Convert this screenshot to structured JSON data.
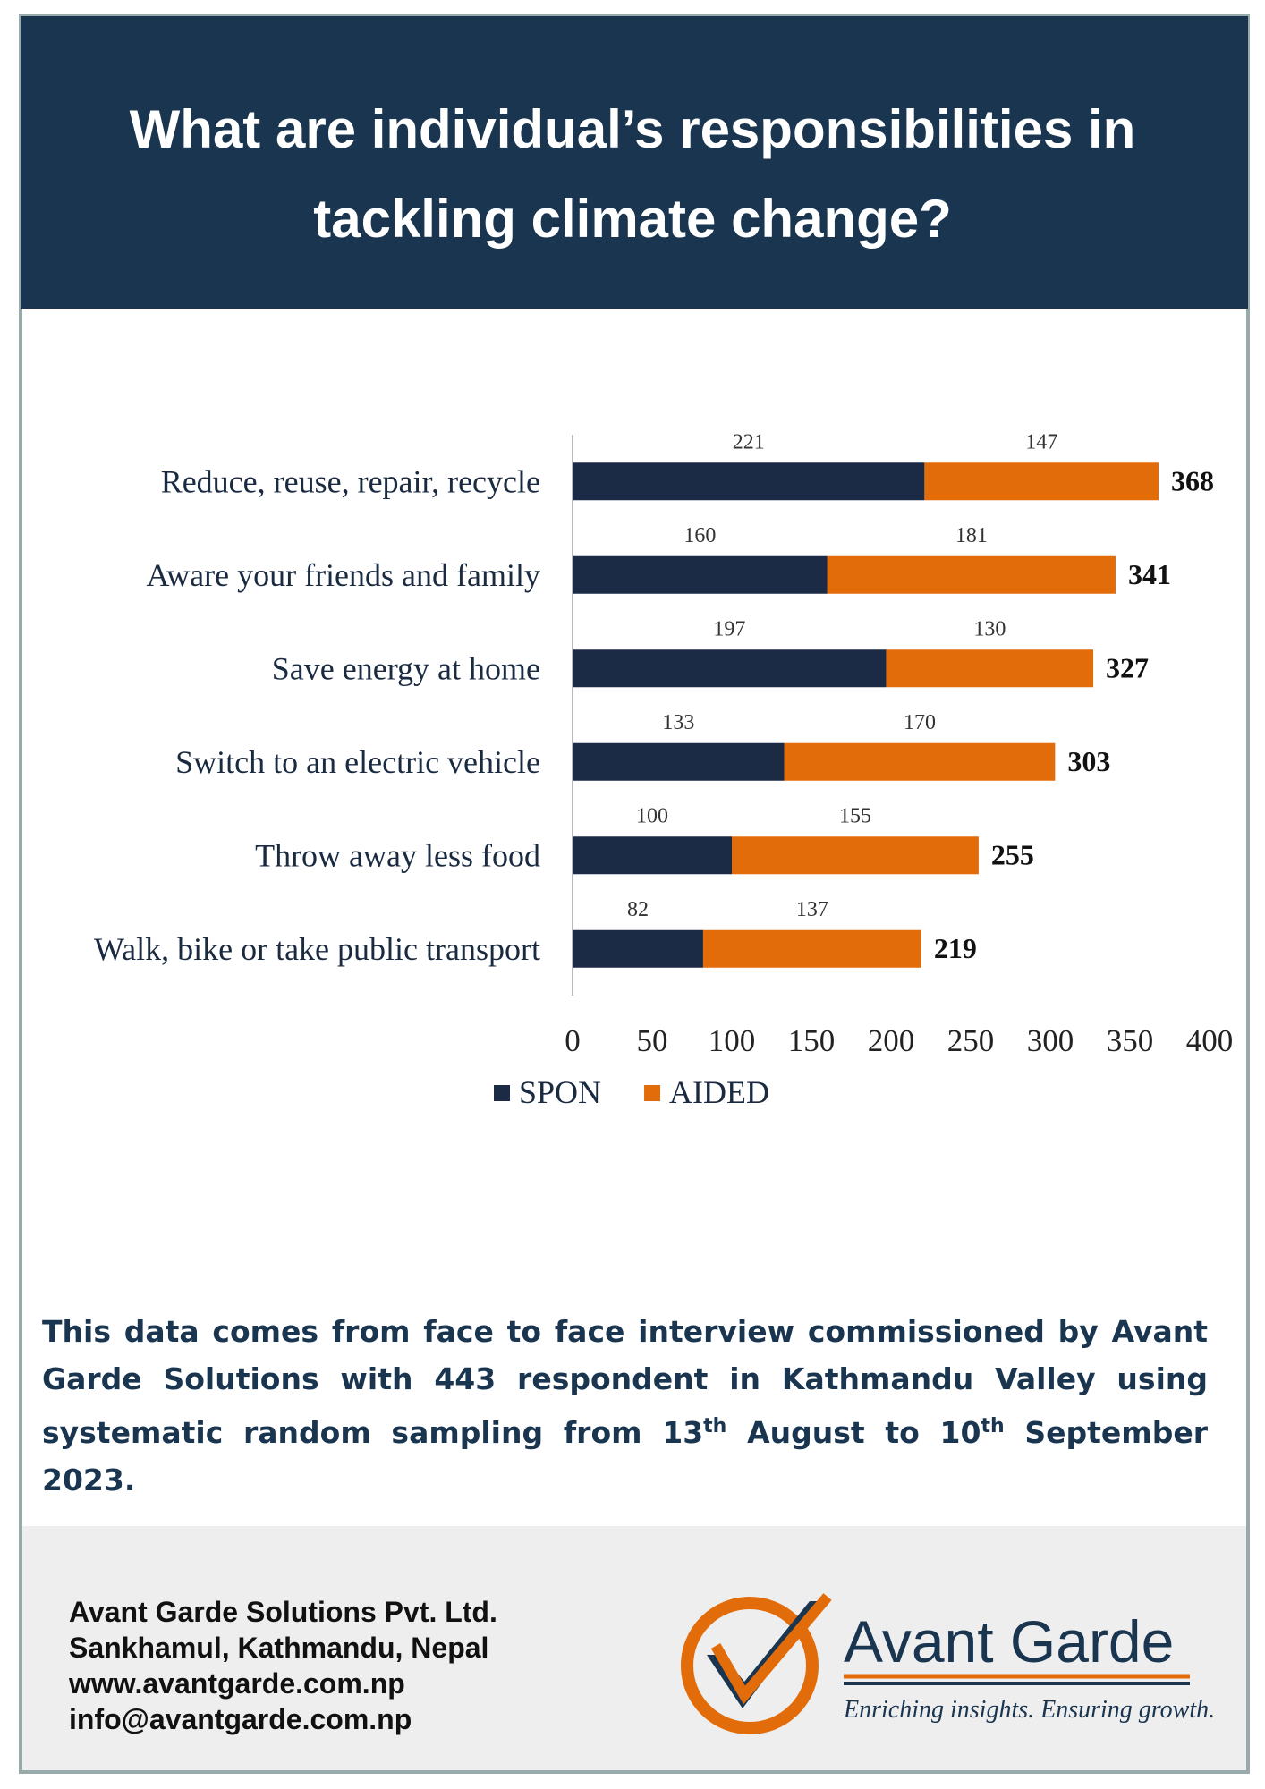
{
  "chart_data": {
    "type": "stacked-barh",
    "title": "What are individual’s responsibilities in tackling climate change?",
    "categories": [
      "Reduce, reuse, repair, recycle",
      "Aware your friends and family",
      "Save energy at home",
      "Switch to an electric vehicle",
      "Throw away less food",
      "Walk, bike or take public transport"
    ],
    "series": [
      {
        "name": "SPON",
        "color": "#1b2a45",
        "values": [
          221,
          160,
          197,
          133,
          100,
          82
        ]
      },
      {
        "name": "AIDED",
        "color": "#e36c0a",
        "values": [
          147,
          181,
          130,
          170,
          155,
          137
        ]
      }
    ],
    "totals": [
      368,
      341,
      327,
      303,
      255,
      219
    ],
    "xlim": [
      0,
      400
    ],
    "xticks": [
      0,
      50,
      100,
      150,
      200,
      250,
      300,
      350,
      400
    ],
    "legend": "bottom"
  },
  "footnote": {
    "parts": [
      "This data comes from face to face interview commissioned by Avant Garde Solutions with 443 respondent in Kathmandu Valley using systematic random sampling from 13",
      " August to 10",
      " September 2023."
    ],
    "superscripts": [
      "th",
      "th"
    ]
  },
  "footer": {
    "contact": [
      "Avant Garde Solutions Pvt. Ltd.",
      "Sankhamul, Kathmandu, Nepal",
      "www.avantgarde.com.np",
      "info@avantgarde.com.np"
    ],
    "logo": "Avant Garde",
    "tagline": "Enriching insights. Ensuring growth."
  }
}
